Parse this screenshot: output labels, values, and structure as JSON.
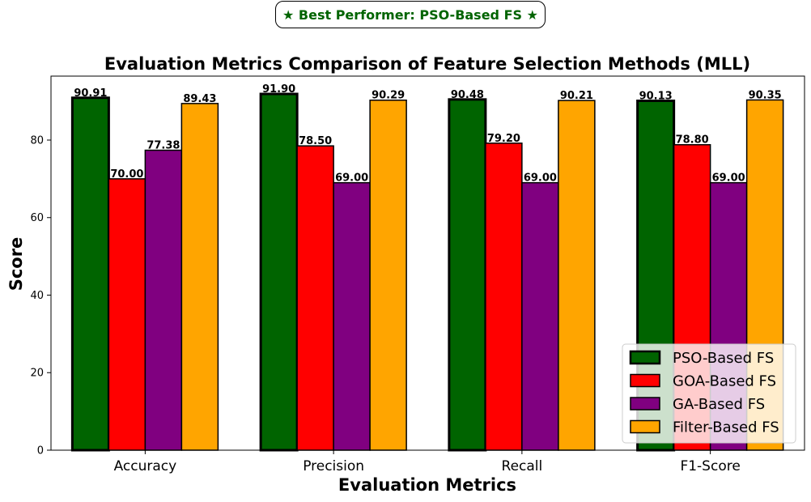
{
  "banner": {
    "text": "★ Best Performer: PSO-Based FS ★"
  },
  "chart_data": {
    "type": "bar",
    "title": "Evaluation Metrics Comparison of Feature Selection Methods (MLL)",
    "xlabel": "Evaluation Metrics",
    "ylabel": "Score",
    "ylim": [
      0,
      96.5
    ],
    "yticks": [
      0,
      20,
      40,
      60,
      80
    ],
    "categories": [
      "Accuracy",
      "Precision",
      "Recall",
      "F1-Score"
    ],
    "series": [
      {
        "name": "PSO-Based FS",
        "color": "#006400",
        "values": [
          90.91,
          91.9,
          90.48,
          90.13
        ],
        "labels": [
          "90.91",
          "91.90",
          "90.48",
          "90.13"
        ]
      },
      {
        "name": "GOA-Based FS",
        "color": "#ff0000",
        "values": [
          70.0,
          78.5,
          79.2,
          78.8
        ],
        "labels": [
          "70.00",
          "78.50",
          "79.20",
          "78.80"
        ]
      },
      {
        "name": "GA-Based FS",
        "color": "#800080",
        "values": [
          77.38,
          69.0,
          69.0,
          69.0
        ],
        "labels": [
          "77.38",
          "69.00",
          "69.00",
          "69.00"
        ]
      },
      {
        "name": "Filter-Based FS",
        "color": "#ffa500",
        "values": [
          89.43,
          90.29,
          90.21,
          90.35
        ],
        "labels": [
          "89.43",
          "90.29",
          "90.21",
          "90.35"
        ]
      }
    ],
    "legend": {
      "position": "bottom-right"
    },
    "grid": false
  }
}
